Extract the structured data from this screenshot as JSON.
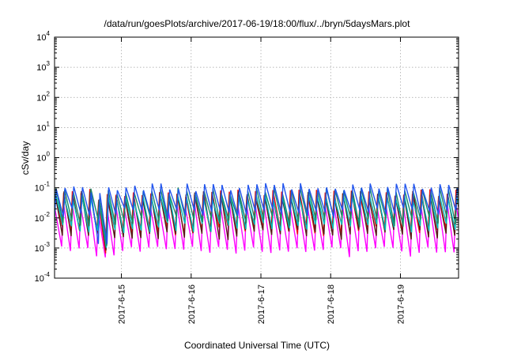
{
  "chart_data": {
    "type": "line",
    "title": "/data/run/goesPlots/archive/2017-06-19/18:00/flux/../bryn/5daysMars.plot",
    "xlabel": "Coordinated Universal Time (UTC)",
    "ylabel": "cSv/day",
    "y_scale": "log",
    "ylim": [
      0.0001,
      10000
    ],
    "y_ticks": [
      {
        "base": "10",
        "exp": "-4",
        "value": 0.0001
      },
      {
        "base": "10",
        "exp": "-3",
        "value": 0.001
      },
      {
        "base": "10",
        "exp": "-2",
        "value": 0.01
      },
      {
        "base": "10",
        "exp": "-1",
        "value": 0.1
      },
      {
        "base": "10",
        "exp": "0",
        "value": 1
      },
      {
        "base": "10",
        "exp": "1",
        "value": 10
      },
      {
        "base": "10",
        "exp": "2",
        "value": 100
      },
      {
        "base": "10",
        "exp": "3",
        "value": 1000
      },
      {
        "base": "10",
        "exp": "4",
        "value": 10000
      }
    ],
    "x_range_days": [
      "2017-06-14 01:00",
      "2017-06-19 20:00"
    ],
    "x_ticks": [
      "2017-6-15",
      "2017-6-16",
      "2017-6-17",
      "2017-6-18",
      "2017-6-19"
    ],
    "grid": true,
    "legend": "none",
    "series": [
      {
        "color": "#ff00ff",
        "peak": 0.03,
        "trough": 0.0008
      },
      {
        "color": "#ee1111",
        "peak": 0.07,
        "trough": 0.004
      },
      {
        "color": "#5a1a1a",
        "peak": 0.06,
        "trough": 0.003
      },
      {
        "color": "#00bbbb",
        "peak": 0.05,
        "trough": 0.005
      },
      {
        "color": "#1a8a6a",
        "peak": 0.08,
        "trough": 0.008
      },
      {
        "color": "#2255ee",
        "peak": 0.11,
        "trough": 0.015
      }
    ],
    "period_hours": 3,
    "dip_window": [
      "2017-06-14 16:00",
      "2017-06-14 21:00"
    ],
    "dip_level": 0.0007
  }
}
